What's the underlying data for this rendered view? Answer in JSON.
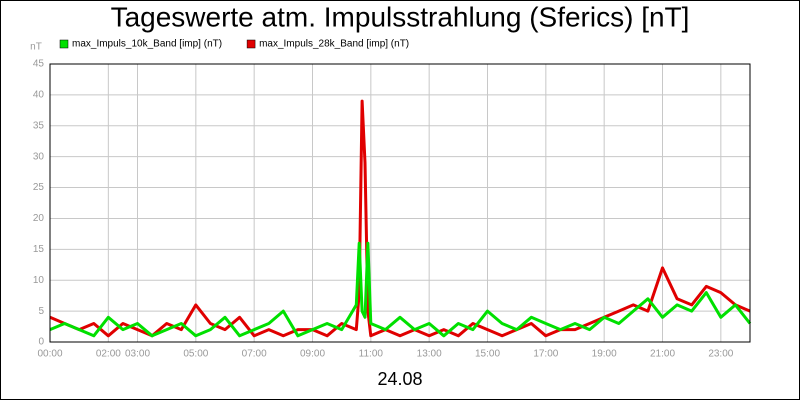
{
  "chart_data": {
    "type": "line",
    "title": "Tageswerte atm. Impulsstrahlung (Sferics) [nT]",
    "y_label": "nT",
    "x_label": "24.08",
    "x": [
      0,
      0.5,
      1,
      1.5,
      2,
      2.5,
      3,
      3.5,
      4,
      4.5,
      5,
      5.5,
      6,
      6.5,
      7,
      7.5,
      8,
      8.5,
      9,
      9.5,
      10,
      10.5,
      10.6,
      10.7,
      10.8,
      10.9,
      11,
      11.5,
      12,
      12.5,
      13,
      13.5,
      14,
      14.5,
      15,
      15.5,
      16,
      16.5,
      17,
      17.5,
      18,
      18.5,
      19,
      19.5,
      20,
      20.5,
      21,
      21.5,
      22,
      22.5,
      23,
      23.5,
      24
    ],
    "series": [
      {
        "name": "max_Impuls_10k_Band [imp] (nT)",
        "color": "#00e000",
        "values": [
          2,
          3,
          2,
          1,
          4,
          2,
          3,
          1,
          2,
          3,
          1,
          2,
          4,
          1,
          2,
          3,
          5,
          1,
          2,
          3,
          2,
          6,
          16,
          5,
          4,
          16,
          3,
          2,
          4,
          2,
          3,
          1,
          3,
          2,
          5,
          3,
          2,
          4,
          3,
          2,
          3,
          2,
          4,
          3,
          5,
          7,
          4,
          6,
          5,
          8,
          4,
          6,
          3
        ]
      },
      {
        "name": "max_Impuls_28k_Band [imp] (nT)",
        "color": "#e00000",
        "values": [
          4,
          3,
          2,
          3,
          1,
          3,
          2,
          1,
          3,
          2,
          6,
          3,
          2,
          4,
          1,
          2,
          1,
          2,
          2,
          1,
          3,
          2,
          8,
          39,
          29,
          5,
          1,
          2,
          1,
          2,
          1,
          2,
          1,
          3,
          2,
          1,
          2,
          3,
          1,
          2,
          2,
          3,
          4,
          5,
          6,
          5,
          12,
          7,
          6,
          9,
          8,
          6,
          5
        ]
      }
    ],
    "xlim": [
      0,
      24
    ],
    "xticks": [
      {
        "value": 0,
        "label": "00:00"
      },
      {
        "value": 2,
        "label": "02:00"
      },
      {
        "value": 3,
        "label": "03:00"
      },
      {
        "value": 5,
        "label": "05:00"
      },
      {
        "value": 7,
        "label": "07:00"
      },
      {
        "value": 9,
        "label": "09:00"
      },
      {
        "value": 11,
        "label": "11:00"
      },
      {
        "value": 13,
        "label": "13:00"
      },
      {
        "value": 15,
        "label": "15:00"
      },
      {
        "value": 17,
        "label": "17:00"
      },
      {
        "value": 19,
        "label": "19:00"
      },
      {
        "value": 21,
        "label": "21:00"
      },
      {
        "value": 23,
        "label": "23:00"
      }
    ],
    "ylim": [
      0,
      45
    ],
    "yticks": [
      0,
      5,
      10,
      15,
      20,
      25,
      30,
      35,
      40,
      45
    ],
    "grid": true
  }
}
